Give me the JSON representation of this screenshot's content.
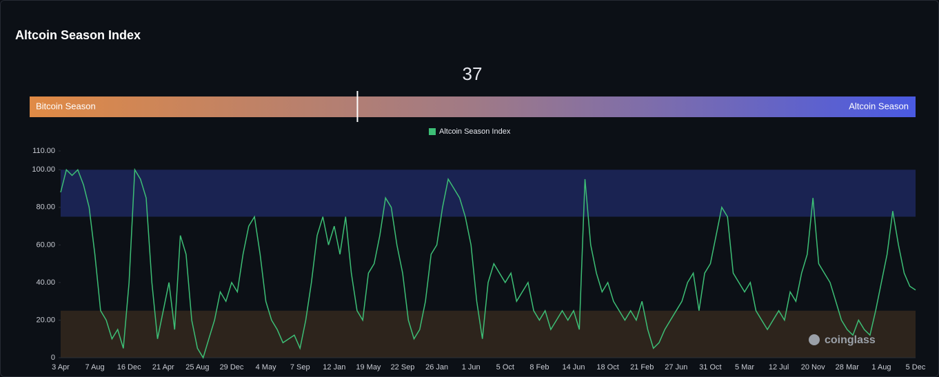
{
  "header": {
    "title": "Altcoin Season Index"
  },
  "gauge": {
    "value": 37,
    "range": [
      0,
      100
    ],
    "left_label": "Bitcoin Season",
    "right_label": "Altcoin Season",
    "colors": [
      "#e08a45",
      "#a07a86",
      "#4a5ae2"
    ]
  },
  "watermark": "coinglass",
  "chart_data": {
    "type": "line",
    "categories": [
      "3 Apr",
      null,
      null,
      null,
      null,
      null,
      "7 Aug",
      null,
      null,
      null,
      null,
      null,
      "16 Dec",
      null,
      null,
      null,
      null,
      null,
      "21 Apr",
      null,
      null,
      null,
      null,
      null,
      "25 Aug",
      null,
      null,
      null,
      null,
      null,
      "29 Dec",
      null,
      null,
      null,
      null,
      null,
      "4 May",
      null,
      null,
      null,
      null,
      null,
      "7 Sep",
      null,
      null,
      null,
      null,
      null,
      "12 Jan",
      null,
      null,
      null,
      null,
      null,
      "19 May",
      null,
      null,
      null,
      null,
      null,
      "22 Sep",
      null,
      null,
      null,
      null,
      null,
      "26 Jan",
      null,
      null,
      null,
      null,
      null,
      "1 Jun",
      null,
      null,
      null,
      null,
      null,
      "5 Oct",
      null,
      null,
      null,
      null,
      null,
      "8 Feb",
      null,
      null,
      null,
      null,
      null,
      "14 Jun",
      null,
      null,
      null,
      null,
      null,
      "18 Oct",
      null,
      null,
      null,
      null,
      null,
      "21 Feb",
      null,
      null,
      null,
      null,
      null,
      "27 Jun",
      null,
      null,
      null,
      null,
      null,
      "31 Oct",
      null,
      null,
      null,
      null,
      null,
      "5 Mar",
      null,
      null,
      null,
      null,
      null,
      "12 Jul",
      null,
      null,
      null,
      null,
      null,
      "20 Nov",
      null,
      null,
      null,
      null,
      null,
      "28 Mar",
      null,
      null,
      null,
      null,
      null,
      "1 Aug",
      null,
      null,
      null,
      null,
      null,
      "5 Dec"
    ],
    "series": [
      {
        "name": "Altcoin Season Index",
        "color": "#3dbf76",
        "values": [
          88,
          100,
          97,
          100,
          92,
          80,
          55,
          25,
          20,
          10,
          15,
          5,
          40,
          100,
          95,
          85,
          40,
          10,
          25,
          40,
          15,
          65,
          55,
          20,
          5,
          0,
          10,
          20,
          35,
          30,
          40,
          35,
          55,
          70,
          75,
          55,
          30,
          20,
          15,
          8,
          10,
          12,
          5,
          20,
          40,
          65,
          75,
          60,
          70,
          55,
          75,
          45,
          25,
          20,
          45,
          50,
          65,
          85,
          80,
          60,
          45,
          20,
          10,
          15,
          30,
          55,
          60,
          80,
          95,
          90,
          85,
          75,
          60,
          30,
          10,
          40,
          50,
          45,
          40,
          45,
          30,
          35,
          40,
          25,
          20,
          25,
          15,
          20,
          25,
          20,
          25,
          15,
          95,
          60,
          45,
          35,
          40,
          30,
          25,
          20,
          25,
          20,
          30,
          15,
          5,
          8,
          15,
          20,
          25,
          30,
          40,
          45,
          25,
          45,
          50,
          65,
          80,
          75,
          45,
          40,
          35,
          40,
          25,
          20,
          15,
          20,
          25,
          20,
          35,
          30,
          45,
          55,
          85,
          50,
          45,
          40,
          30,
          20,
          15,
          12,
          20,
          15,
          12,
          25,
          40,
          55,
          78,
          60,
          45,
          38,
          36
        ]
      }
    ],
    "ylim": [
      0,
      110
    ],
    "yticks": [
      0,
      {
        "value": 20,
        "label": "20.00"
      },
      {
        "value": 40,
        "label": "40.00"
      },
      {
        "value": 60,
        "label": "60.00"
      },
      {
        "value": 80,
        "label": "80.00"
      },
      {
        "value": 100,
        "label": "100.00"
      },
      {
        "value": 110,
        "label": "110.00"
      }
    ],
    "bands": [
      {
        "from": 75,
        "to": 100,
        "color": "#1a2352"
      },
      {
        "from": 0,
        "to": 25,
        "color": "#2d241c"
      }
    ]
  }
}
